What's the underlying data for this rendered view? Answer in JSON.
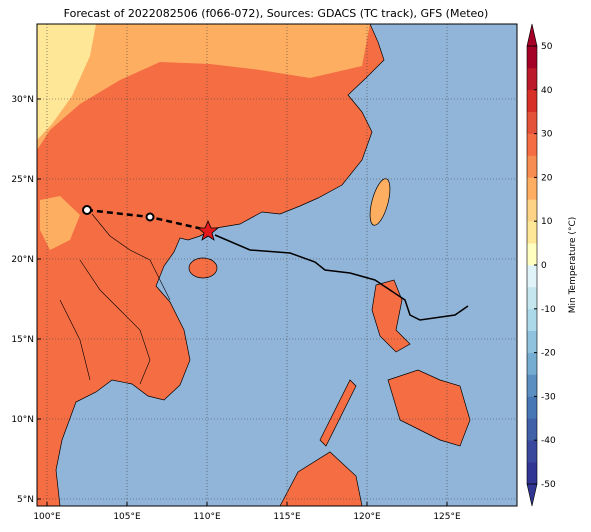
{
  "title": "Forecast of 2022082506 (f066-072), Sources: GDACS (TC track), GFS (Meteo)",
  "map": {
    "lon_ticks": [
      {
        "value": 100,
        "label": "100°E"
      },
      {
        "value": 105,
        "label": "105°E"
      },
      {
        "value": 110,
        "label": "110°E"
      },
      {
        "value": 115,
        "label": "115°E"
      },
      {
        "value": 120,
        "label": "120°E"
      },
      {
        "value": 125,
        "label": "125°E"
      }
    ],
    "lat_ticks": [
      {
        "value": 5,
        "label": "5°N"
      },
      {
        "value": 10,
        "label": "10°N"
      },
      {
        "value": 15,
        "label": "15°N"
      },
      {
        "value": 20,
        "label": "20°N"
      },
      {
        "value": 25,
        "label": "25°N"
      },
      {
        "value": 30,
        "label": "30°N"
      }
    ],
    "grid": true
  },
  "colorbar": {
    "label": "Min Temperature (°C)",
    "lim": [
      -50,
      50
    ],
    "ticks": [
      -50,
      -40,
      -30,
      -20,
      -10,
      0,
      10,
      20,
      30,
      40,
      50
    ],
    "colors": [
      "#313695",
      "#39479c",
      "#4060a8",
      "#4877b5",
      "#5b8fc2",
      "#74add1",
      "#90c3dd",
      "#abd9e9",
      "#c6e6ef",
      "#e0f3f8",
      "#ffffbf",
      "#fee898",
      "#fed386",
      "#fdae61",
      "#f88d52",
      "#f46d43",
      "#e5523a",
      "#d73027",
      "#bc1a2b",
      "#a50026"
    ]
  }
}
